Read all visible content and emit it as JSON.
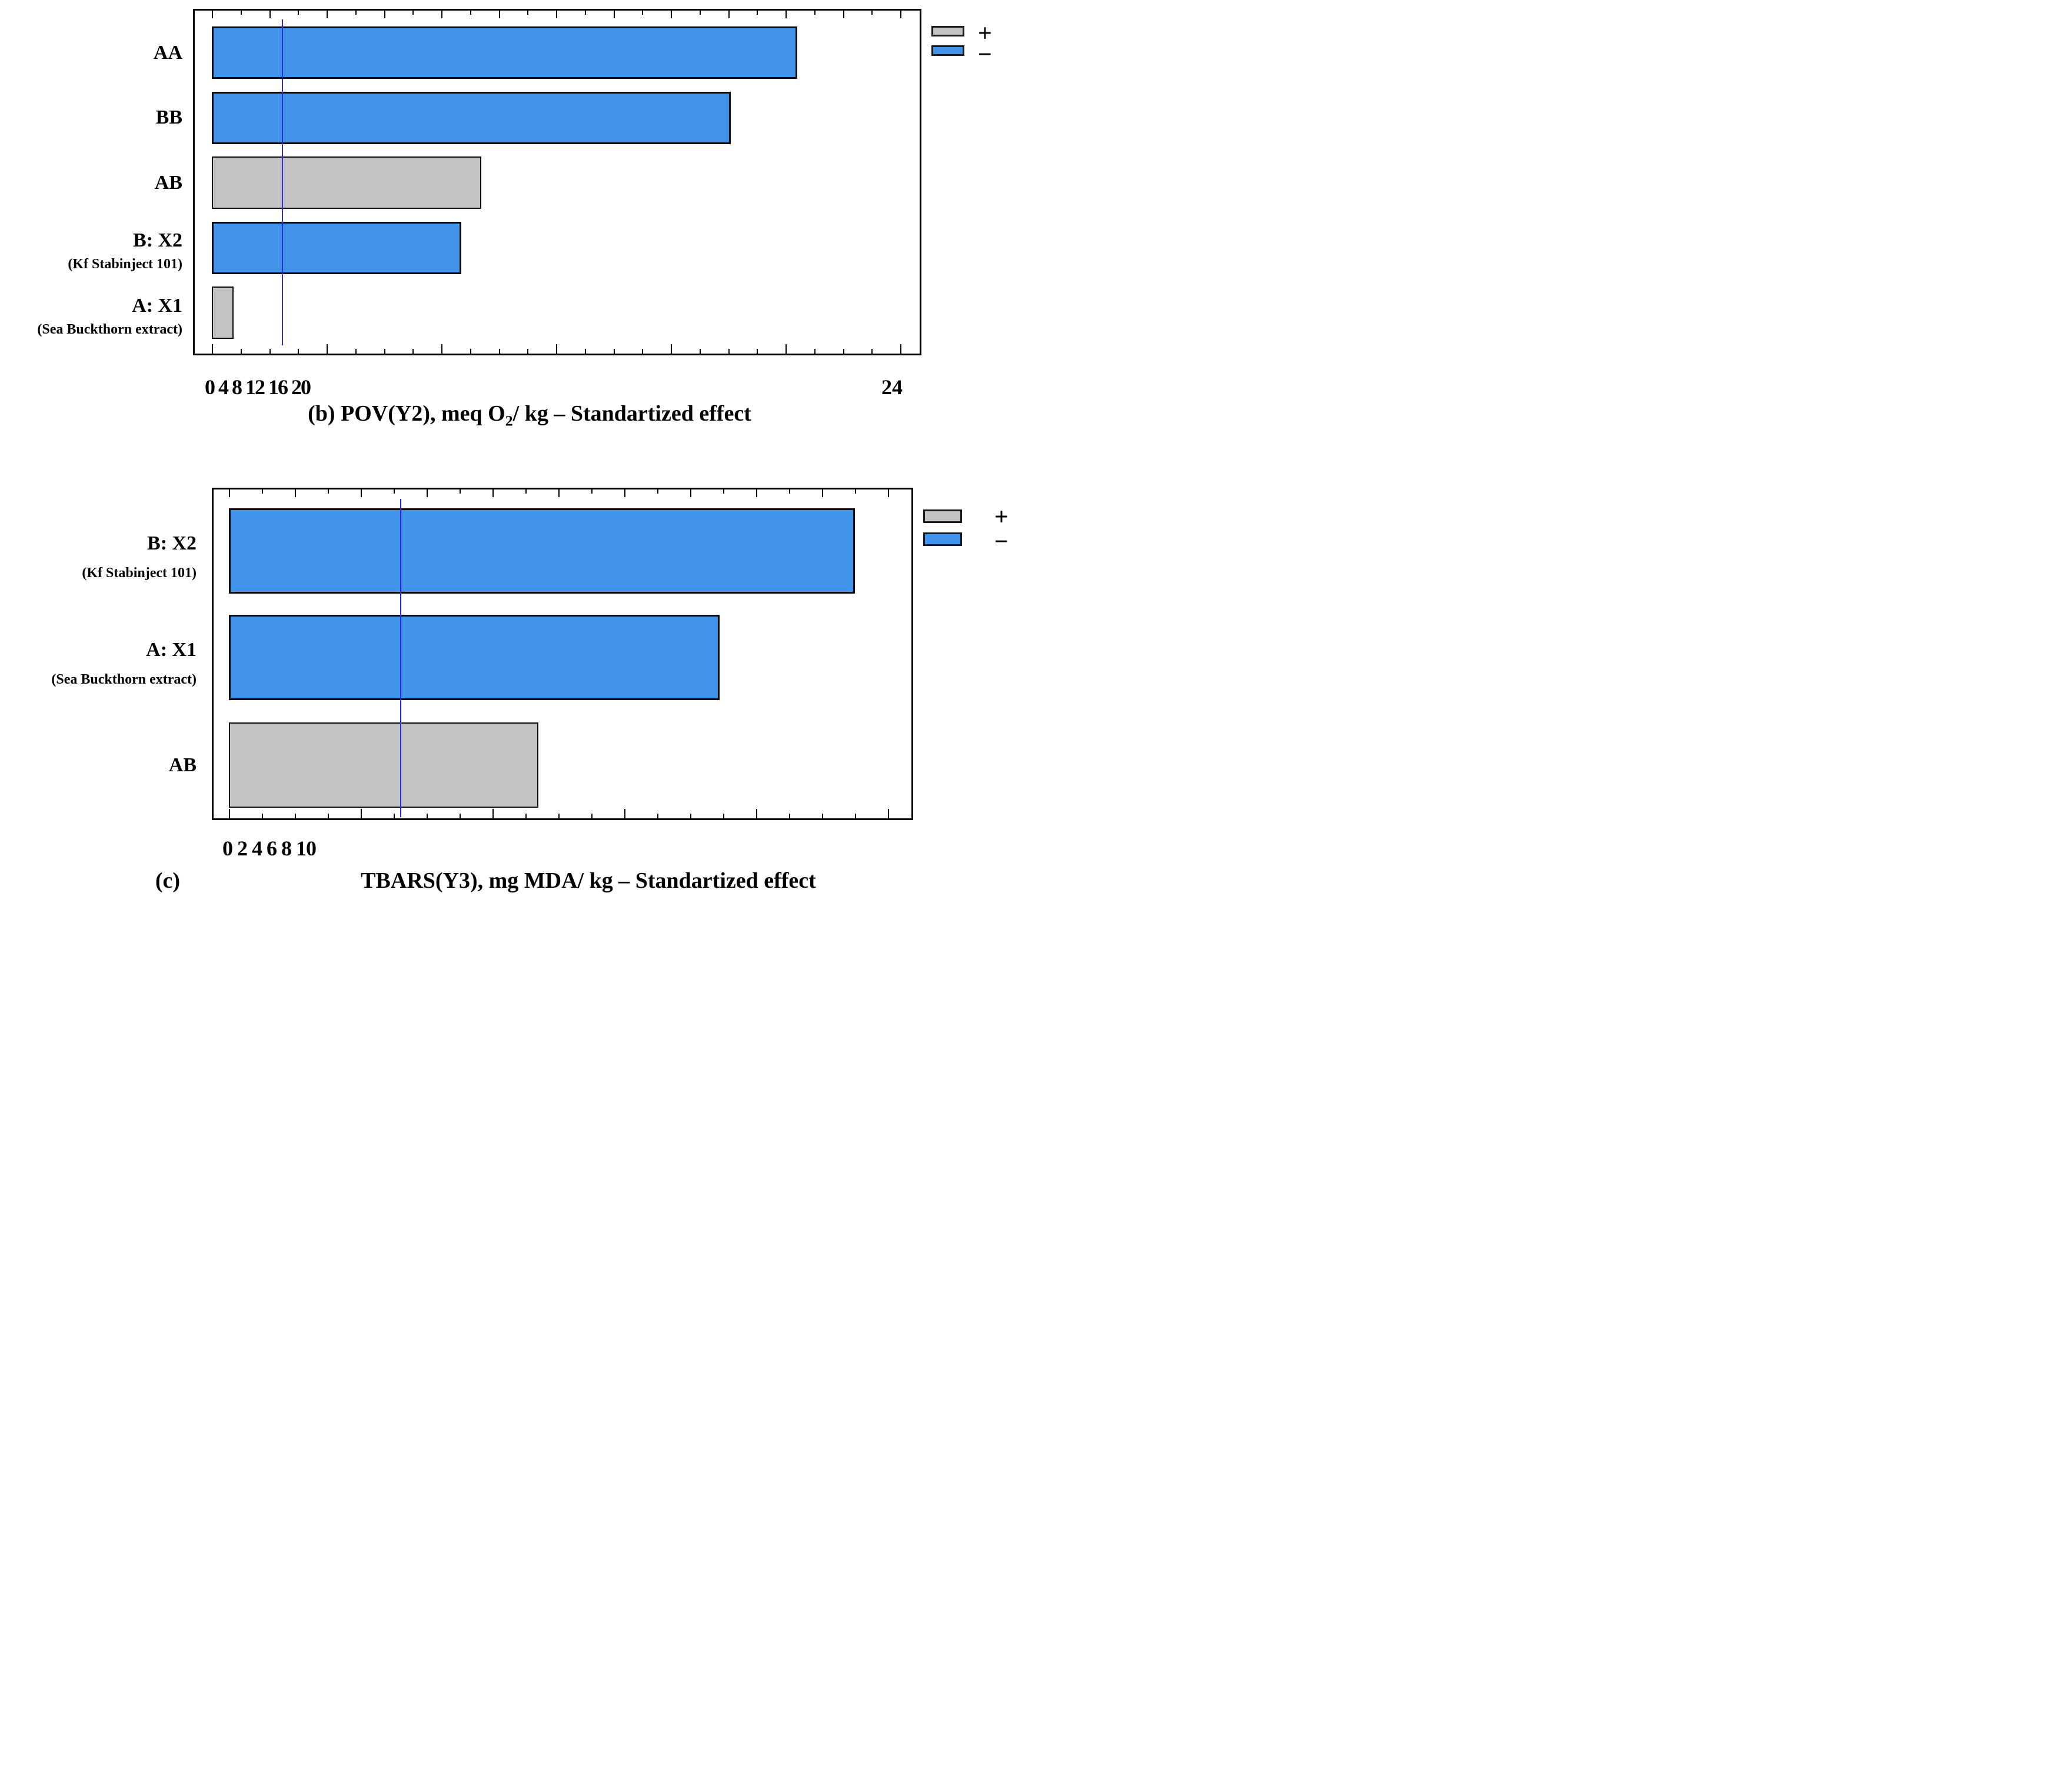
{
  "figure": {
    "description_visible_text_only": "Two horizontal Pareto charts of standardized effects",
    "colors": {
      "positive_effect_bar": "#c3c3c3",
      "negative_effect_bar": "#4193ea",
      "threshold_line": "#2b2be0",
      "frame_and_text": "#000000",
      "background": "#ffffff"
    }
  },
  "chart_data": [
    {
      "type": "bar",
      "orientation": "horizontal",
      "title": "(b) POV(Y2), meq O2/ kg – Standartized effect",
      "title_parts": {
        "pre": "(b) POV(Y2), meq O",
        "sub": "2",
        "post": "/ kg – Standartized effect"
      },
      "categories": [
        "AA",
        "BB",
        "AB",
        "B: X2",
        "A: X1"
      ],
      "category_sublabels": [
        "",
        "",
        "",
        "(Kf Stabinject 101)",
        "(Sea Buckthorn extract)"
      ],
      "values": [
        20.4,
        18.1,
        9.4,
        8.7,
        0.75
      ],
      "effect_sign": [
        "-",
        "-",
        "+",
        "-",
        "+"
      ],
      "threshold_line": 2.45,
      "xlim": [
        0,
        24.8
      ],
      "x_major_tick_values": [
        0,
        4,
        8,
        12,
        16,
        20,
        24
      ],
      "x_axis_label_cluster": "0 4 8 12 16 20",
      "x_axis_label_right": "24",
      "grid": false,
      "legend_position": "outside-top-right",
      "legend": [
        {
          "label": "+",
          "color": "#c3c3c3"
        },
        {
          "label": "−",
          "color": "#4193ea"
        }
      ]
    },
    {
      "type": "bar",
      "orientation": "horizontal",
      "panel_label": "(c)",
      "title": "TBARS(Y3), mg MDA/ kg – Standartized effect",
      "categories": [
        "B: X2",
        "A: X1",
        "AB"
      ],
      "category_sublabels": [
        "(Kf Stabinject 101)",
        "(Sea Buckthorn extract)",
        ""
      ],
      "values": [
        9.5,
        7.45,
        4.7
      ],
      "effect_sign": [
        "-",
        "-",
        "+"
      ],
      "threshold_line": 2.6,
      "xlim": [
        0,
        10.4
      ],
      "x_major_tick_values": [
        0,
        2,
        4,
        6,
        8,
        10
      ],
      "x_axis_label_cluster": "0 2 4 6 8 10",
      "x_axis_label_right": "",
      "grid": false,
      "legend_position": "outside-top-right",
      "legend": [
        {
          "label": "+",
          "color": "#c3c3c3"
        },
        {
          "label": "−",
          "color": "#4193ea"
        }
      ]
    }
  ]
}
